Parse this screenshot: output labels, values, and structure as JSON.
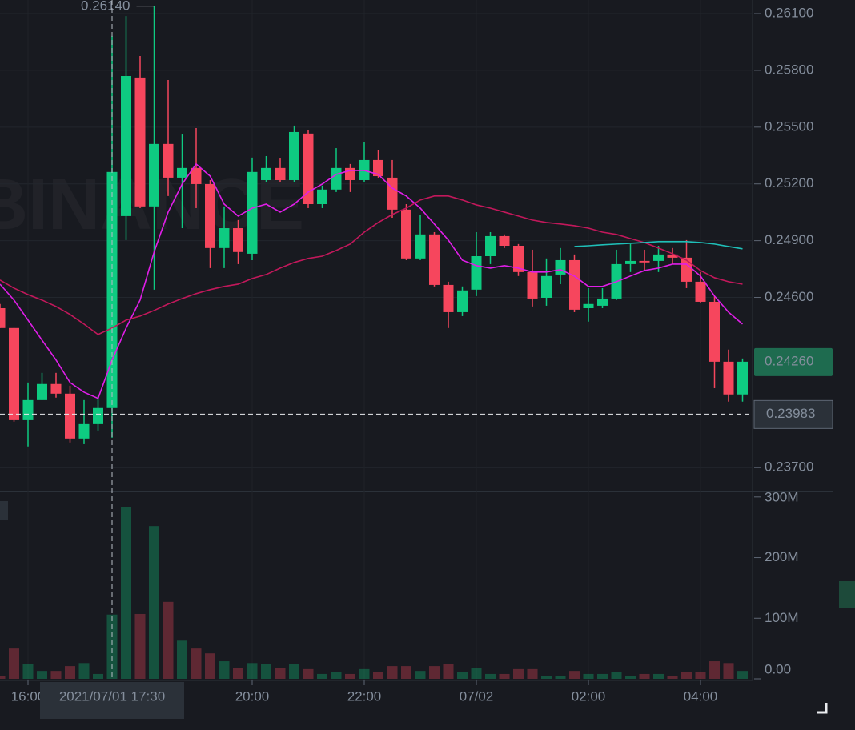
{
  "chart_data": {
    "type": "candlestick",
    "watermark": "BINANCE",
    "categories": [
      null,
      null,
      "16:00",
      null,
      null,
      null,
      null,
      null,
      null,
      null,
      null,
      null,
      null,
      null,
      null,
      null,
      null,
      null,
      "20:00",
      null,
      null,
      null,
      null,
      null,
      null,
      null,
      "22:00",
      null,
      null,
      null,
      null,
      null,
      null,
      null,
      "07/02",
      null,
      null,
      null,
      null,
      null,
      null,
      null,
      "02:00",
      null,
      null,
      null,
      null,
      null,
      null,
      null,
      "04:00",
      null,
      null,
      null
    ],
    "open": [
      0.24543,
      0.24438,
      0.23951,
      0.24057,
      0.24142,
      0.24091,
      0.23854,
      0.2393,
      0.24015,
      0.2503,
      0.25762,
      0.25081,
      0.25411,
      0.25233,
      0.25284,
      0.25199,
      0.24861,
      0.24966,
      0.24831,
      0.2522,
      0.25284,
      0.2522,
      0.25466,
      0.25093,
      0.2517,
      0.25284,
      0.2522,
      0.25326,
      0.25233,
      0.25064,
      0.24806,
      0.24933,
      0.24666,
      0.24522,
      0.24641,
      0.24818,
      0.24924,
      0.24873,
      0.24734,
      0.24598,
      0.24721,
      0.24797,
      0.24543,
      0.24556,
      0.24594,
      0.24776,
      0.24793,
      0.24793,
      0.24827,
      0.2481,
      0.24683,
      0.24577,
      0.2426,
      0.24087
    ],
    "high": [
      0.24565,
      0.24438,
      0.2415,
      0.24201,
      0.24201,
      0.24133,
      0.24057,
      0.24078,
      0.25982,
      0.26087,
      0.25876,
      0.2614,
      0.25749,
      0.25461,
      0.25495,
      0.2522,
      0.25081,
      0.25009,
      0.25339,
      0.25347,
      0.25334,
      0.25508,
      0.25483,
      0.25191,
      0.25389,
      0.25305,
      0.25423,
      0.25377,
      0.25326,
      0.25093,
      0.25038,
      0.24945,
      0.24683,
      0.24658,
      0.24945,
      0.24945,
      0.24933,
      0.24882,
      0.24852,
      0.24806,
      0.24861,
      0.24827,
      0.24649,
      0.24649,
      0.24852,
      0.24882,
      0.24852,
      0.24873,
      0.24861,
      0.24903,
      0.24734,
      0.24607,
      0.24324,
      0.24277
    ],
    "low": [
      0.24438,
      0.23943,
      0.23812,
      0.24057,
      0.2407,
      0.23833,
      0.23824,
      0.23896,
      0.23858,
      0.24903,
      0.25072,
      0.24641,
      0.25136,
      0.24966,
      0.25072,
      0.24755,
      0.24755,
      0.24776,
      0.24797,
      0.25208,
      0.25208,
      0.25208,
      0.25072,
      0.25072,
      0.25157,
      0.25157,
      0.25208,
      0.25233,
      0.25021,
      0.24797,
      0.24797,
      0.24658,
      0.24438,
      0.24501,
      0.24607,
      0.24776,
      0.24861,
      0.24713,
      0.24552,
      0.24556,
      0.2467,
      0.24522,
      0.24472,
      0.24543,
      0.24586,
      0.24734,
      0.24742,
      0.24734,
      0.24776,
      0.24649,
      0.24573,
      0.2412,
      0.24049,
      0.24049
    ],
    "close": [
      0.24438,
      0.23951,
      0.24057,
      0.24142,
      0.24091,
      0.23854,
      0.2393,
      0.24015,
      0.25263,
      0.2577,
      0.25081,
      0.25411,
      0.25233,
      0.25284,
      0.25199,
      0.24861,
      0.24966,
      0.2484,
      0.25263,
      0.25284,
      0.2522,
      0.25474,
      0.25093,
      0.2517,
      0.25284,
      0.2522,
      0.25326,
      0.25241,
      0.25064,
      0.24806,
      0.24933,
      0.24666,
      0.24522,
      0.24637,
      0.24818,
      0.24924,
      0.24873,
      0.24734,
      0.24594,
      0.24713,
      0.24797,
      0.24535,
      0.24565,
      0.24594,
      0.24776,
      0.24793,
      0.24785,
      0.24827,
      0.2481,
      0.24683,
      0.24577,
      0.2426,
      0.24087,
      0.2426
    ],
    "up_color": "#0ecb81",
    "down_color": "#f6465d",
    "overlays": [
      {
        "color": "#e01ee8",
        "values": [
          0.2467,
          0.24586,
          0.2448,
          0.24374,
          0.24269,
          0.2415,
          0.24099,
          0.24066,
          0.24269,
          0.24438,
          0.24586,
          0.2484,
          0.25051,
          0.25199,
          0.25305,
          0.25241,
          0.25093,
          0.2503,
          0.25072,
          0.25093,
          0.25051,
          0.25093,
          0.25157,
          0.25199,
          0.2525,
          0.25271,
          0.25271,
          0.2525,
          0.25178,
          0.25136,
          0.25072,
          0.24988,
          0.24903,
          0.24797,
          0.24768,
          0.24755,
          0.24768,
          0.24755,
          0.24734,
          0.24734,
          0.24747,
          0.24713,
          0.24658,
          0.24658,
          0.24683,
          0.24713,
          0.24742,
          0.24755,
          0.24776,
          0.24776,
          0.24713,
          0.24607,
          0.24522,
          0.24459
        ]
      },
      {
        "color": "#c2185b",
        "values": [
          0.24692,
          0.24649,
          0.24615,
          0.24586,
          0.24552,
          0.2451,
          0.24459,
          0.24404,
          0.24438,
          0.2448,
          0.24501,
          0.24531,
          0.24565,
          0.24594,
          0.2462,
          0.24641,
          0.24658,
          0.2467,
          0.247,
          0.24721,
          0.24755,
          0.24785,
          0.24806,
          0.24818,
          0.24848,
          0.24882,
          0.24945,
          0.24996,
          0.25038,
          0.25072,
          0.25115,
          0.25136,
          0.25136,
          0.25115,
          0.25089,
          0.25072,
          0.25051,
          0.2503,
          0.25009,
          0.24996,
          0.24988,
          0.24979,
          0.24966,
          0.24945,
          0.24933,
          0.24911,
          0.2489,
          0.24861,
          0.24831,
          0.24797,
          0.24742,
          0.24704,
          0.24683,
          0.2467
        ]
      },
      {
        "color": "#1fbfb8",
        "values": [
          null,
          null,
          null,
          null,
          null,
          null,
          null,
          null,
          null,
          null,
          null,
          null,
          null,
          null,
          null,
          null,
          null,
          null,
          null,
          null,
          null,
          null,
          null,
          null,
          null,
          null,
          null,
          null,
          null,
          null,
          null,
          null,
          null,
          null,
          null,
          null,
          null,
          null,
          null,
          null,
          null,
          0.24869,
          0.24873,
          0.24878,
          0.24882,
          0.24886,
          0.2489,
          0.24895,
          0.24895,
          0.24895,
          0.2489,
          0.24882,
          0.24869,
          0.24857
        ]
      }
    ],
    "ylim": [
      0.23574,
      0.26172
    ],
    "yticks": [
      {
        "value": 0.261,
        "label": "0.26100"
      },
      {
        "value": 0.258,
        "label": "0.25800"
      },
      {
        "value": 0.255,
        "label": "0.25500"
      },
      {
        "value": 0.252,
        "label": "0.25200"
      },
      {
        "value": 0.249,
        "label": "0.24900"
      },
      {
        "value": 0.246,
        "label": "0.24600"
      },
      {
        "value": 0.237,
        "label": "0.23700"
      }
    ],
    "high_marker": {
      "value": 0.2614,
      "label": "0.26140"
    },
    "last_price": {
      "value": 0.2426,
      "label": "0.24260"
    },
    "crosshair": {
      "value": 0.23983,
      "label": "0.23983",
      "x_label": "2021/07/01 17:30"
    },
    "volume": {
      "values": [
        5000000,
        50000000,
        24000000,
        13000000,
        13000000,
        21000000,
        26000000,
        8000000,
        106000000,
        283000000,
        107000000,
        252000000,
        127000000,
        63000000,
        50000000,
        42000000,
        29000000,
        18000000,
        26000000,
        24000000,
        18000000,
        24000000,
        16000000,
        8000000,
        11000000,
        8000000,
        16000000,
        11000000,
        21000000,
        21000000,
        13000000,
        21000000,
        24000000,
        11000000,
        18000000,
        8000000,
        8000000,
        16000000,
        16000000,
        5000000,
        5000000,
        13000000,
        8000000,
        8000000,
        11000000,
        5000000,
        8000000,
        8000000,
        5000000,
        11000000,
        11000000,
        29000000,
        26000000,
        13000000
      ],
      "ylim": [
        0,
        309000000
      ],
      "yticks": [
        {
          "value": 0,
          "label": "0.00"
        },
        {
          "value": 100000000,
          "label": "100M"
        },
        {
          "value": 200000000,
          "label": "200M"
        },
        {
          "value": 300000000,
          "label": "300M"
        }
      ]
    }
  }
}
